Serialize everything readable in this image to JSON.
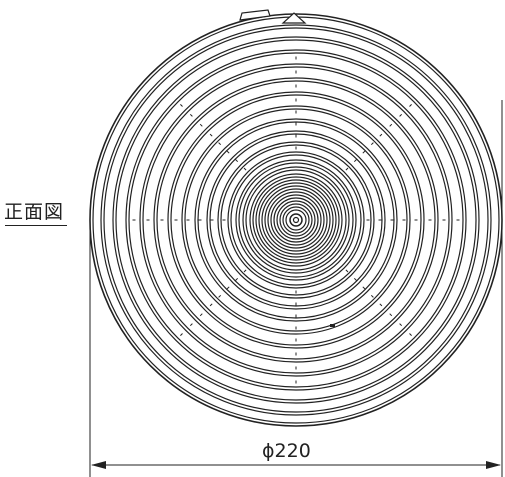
{
  "view_label": "正面図",
  "dimension": {
    "diameter_label": "ϕ220"
  },
  "colors": {
    "line": "#222222",
    "background": "#ffffff"
  }
}
